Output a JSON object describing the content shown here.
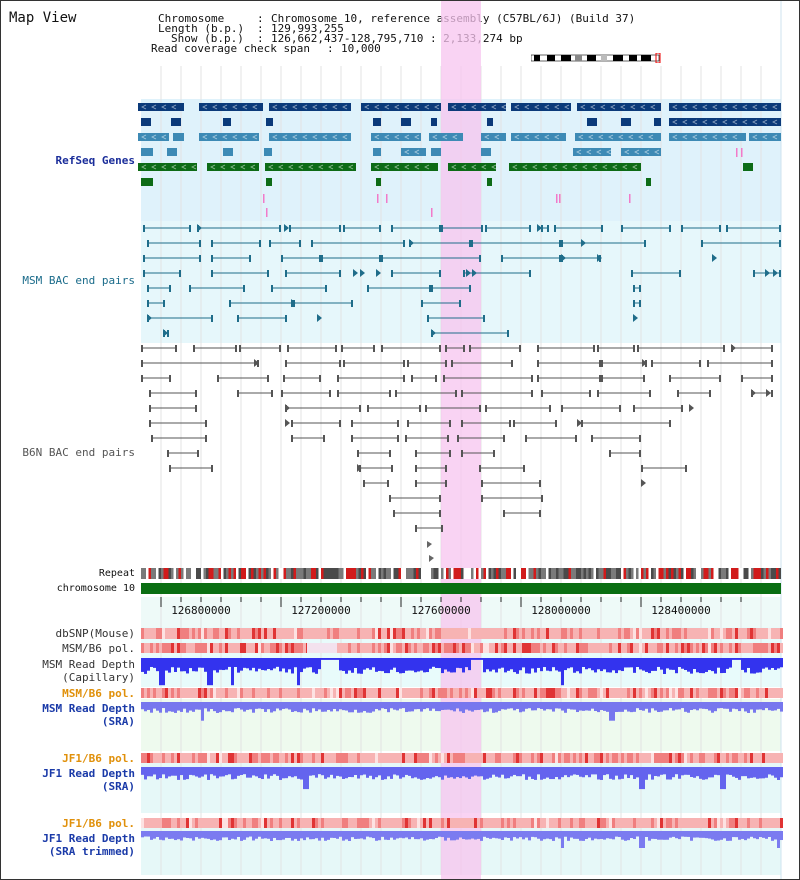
{
  "title": "Map View",
  "info": {
    "chromosome_key": "Chromosome",
    "chromosome_value": "Chromosome 10, reference assembly (C57BL/6J) (Build 37)",
    "length_key": "Length (b.p.)",
    "length_value": "129,993,255",
    "show_key": "Show (b.p.)",
    "show_value": "126,662,437-128,795,710 : 2,133,274 bp",
    "coverage_key": "Read coverage check span",
    "coverage_value": "10,000"
  },
  "tracks": {
    "refseq": "RefSeq Genes",
    "msm_bac": "MSM BAC end pairs",
    "b6n_bac": "B6N BAC end pairs",
    "repeat": "Repeat",
    "chromosome": "chromosome 10",
    "dbsnp": "dbSNP(Mouse)",
    "msm_b6_pol": "MSM/B6 pol.",
    "msm_read_depth_cap_1": "MSM Read Depth",
    "msm_read_depth_cap_2": "(Capillary)",
    "msm_b6_pol_2": "MSM/B6 pol.",
    "msm_read_depth_sra_1": "MSM Read Depth",
    "msm_read_depth_sra_2": "(SRA)",
    "jf1_b6_pol": "JF1/B6 pol.",
    "jf1_read_depth_1": "JF1 Read Depth",
    "jf1_read_depth_2": "(SRA)",
    "jf1_b6_pol_2": "JF1/B6 pol.",
    "jf1_trim_1": "JF1 Read Depth",
    "jf1_trim_2": "(SRA trimmed)"
  },
  "axis": {
    "ticks": [
      "126800000",
      "127200000",
      "127600000",
      "128000000",
      "128400000"
    ]
  },
  "colors": {
    "refseq_dark": "#0b3a7a",
    "refseq_mid": "#3d8ab5",
    "refseq_green": "#0d6b16",
    "msm_bac": "#1f6d8a",
    "b6n_bac": "#555555",
    "highlight": "#f7c4ef",
    "label_navy": "#1a2d9a",
    "label_blue": "#1a3aa8",
    "label_teal": "#1a6b8a",
    "label_orange": "#e0900a",
    "depth_blue": "#3333ee",
    "depth_lav": "#7777ee",
    "chrom_green": "#0a6e12"
  }
}
